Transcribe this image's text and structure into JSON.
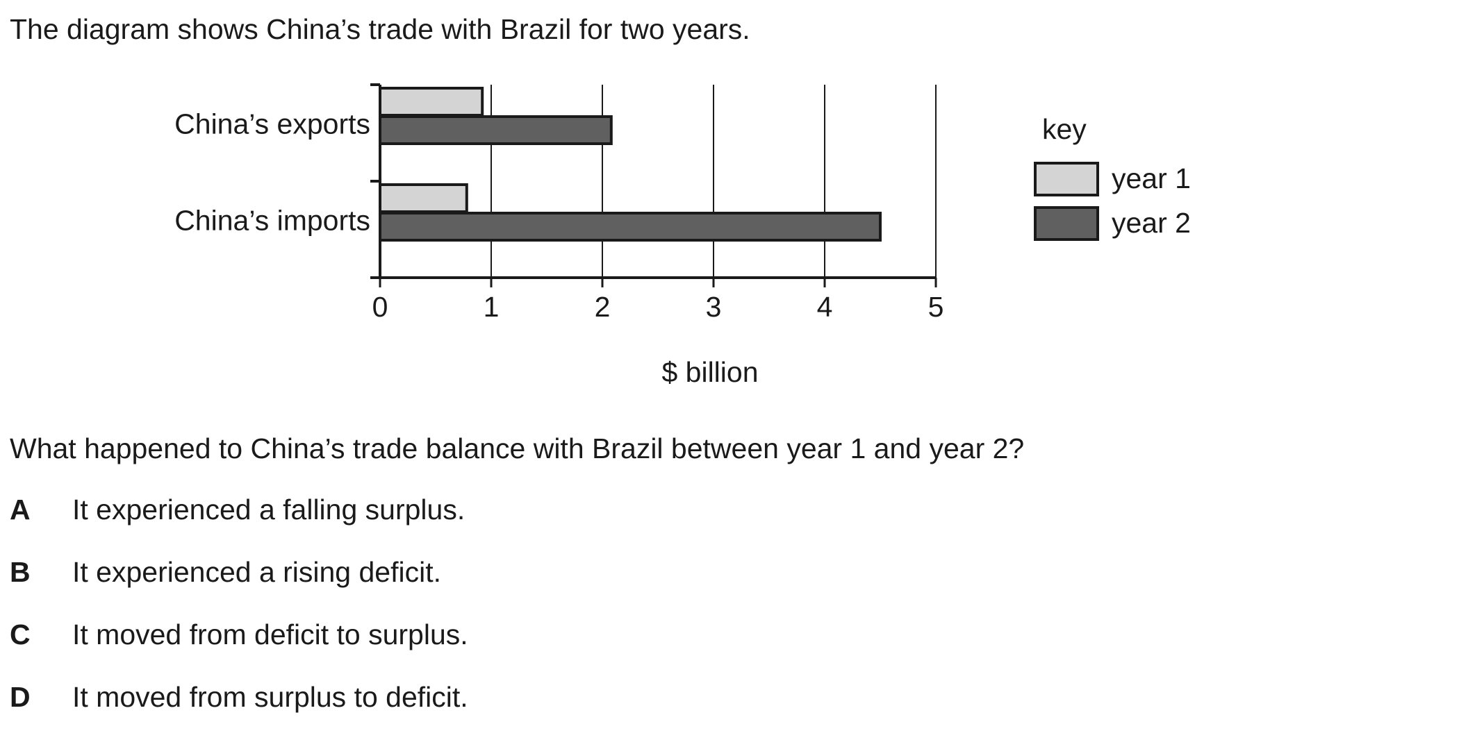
{
  "intro_text": "The diagram shows China’s trade with Brazil for two years.",
  "chart_data": {
    "type": "bar",
    "orientation": "horizontal",
    "categories": [
      "China’s exports",
      "China’s imports"
    ],
    "series": [
      {
        "name": "year 1",
        "values": [
          0.92,
          0.78
        ],
        "color": "#d4d4d4"
      },
      {
        "name": "year 2",
        "values": [
          2.08,
          4.5
        ],
        "color": "#606060"
      }
    ],
    "xlabel": "$ billion",
    "xlim": [
      0,
      5
    ],
    "xticks": [
      "0",
      "1",
      "2",
      "3",
      "4",
      "5"
    ],
    "grid": "vertical gridlines at each integer",
    "legend_title": "key",
    "legend_placement": "right"
  },
  "question_text": "What happened to China’s trade balance with Brazil between year 1 and year 2?",
  "options": [
    {
      "letter": "A",
      "text": "It experienced a falling surplus."
    },
    {
      "letter": "B",
      "text": "It experienced a rising deficit."
    },
    {
      "letter": "C",
      "text": "It moved from deficit to surplus."
    },
    {
      "letter": "D",
      "text": "It moved from surplus to deficit."
    }
  ]
}
